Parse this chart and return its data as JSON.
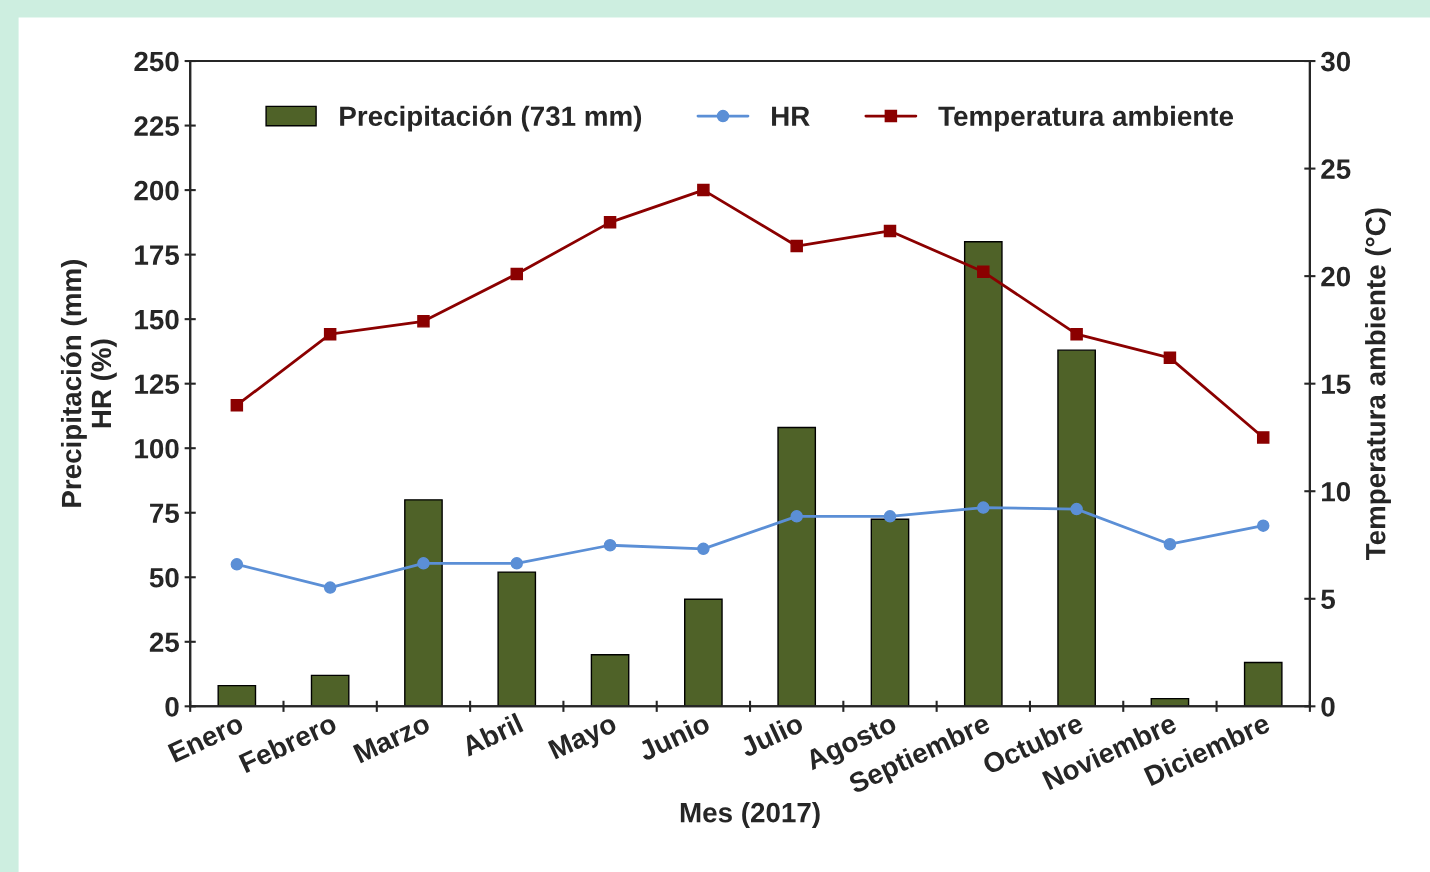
{
  "chart_data": {
    "type": "bar",
    "categories": [
      "Enero",
      "Febrero",
      "Marzo",
      "Abril",
      "Mayo",
      "Junio",
      "Julio",
      "Agosto",
      "Septiembre",
      "Octubre",
      "Noviembre",
      "Diciembre"
    ],
    "xlabel": "Mes (2017)",
    "ylabel": "Precipitación (mm)\nHR (%)",
    "y2label": "Temperatura ambiente (°C)",
    "series": [
      {
        "name": "Precipitación (731 mm)",
        "color": "#4f6228",
        "values": [
          8,
          12,
          80,
          52,
          20,
          41.5,
          108,
          72.5,
          180,
          138,
          3,
          17
        ]
      },
      {
        "name": "HR",
        "type": "line",
        "color": "#5b8fd6",
        "marker": "circle",
        "values": [
          55,
          46,
          55.4,
          55.4,
          62.4,
          61,
          73.6,
          73.6,
          77,
          76.4,
          62.8,
          70
        ]
      },
      {
        "name": "Temperatura ambiente",
        "type": "line",
        "axis": "y2",
        "color": "#8b0000",
        "marker": "square",
        "values": [
          14.0,
          17.3,
          17.9,
          20.1,
          22.5,
          24.0,
          21.4,
          22.1,
          20.2,
          17.3,
          16.2,
          12.5
        ]
      }
    ],
    "ylim": [
      0,
      250
    ],
    "yticks": [
      0,
      25,
      50,
      75,
      100,
      125,
      150,
      175,
      200,
      225,
      250
    ],
    "y2lim": [
      0,
      30
    ],
    "y2ticks": [
      0,
      5,
      10,
      15,
      20,
      25,
      30
    ],
    "grid": false,
    "legend": "top"
  }
}
